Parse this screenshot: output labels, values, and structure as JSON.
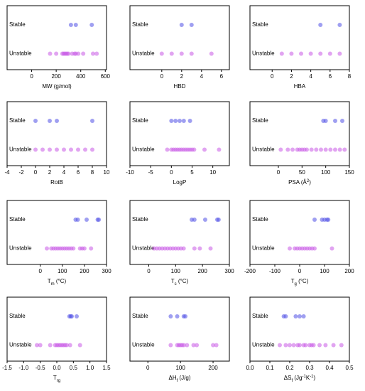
{
  "chart_data": [
    {
      "type": "scatter",
      "xlabel": [
        {
          "text": "MW (g/mol)"
        }
      ],
      "xlim": [
        -200,
        610
      ],
      "xticks": [
        0,
        200,
        400,
        600
      ],
      "series": [
        {
          "name": "Stable",
          "color": "#5050e6",
          "values": [
            320,
            360,
            490
          ]
        },
        {
          "name": "Unstable",
          "color": "#c85ae6",
          "values": [
            150,
            200,
            250,
            260,
            270,
            280,
            290,
            300,
            330,
            350,
            360,
            380,
            420,
            500,
            530
          ]
        }
      ]
    },
    {
      "type": "scatter",
      "xlabel": [
        {
          "text": "HBD"
        }
      ],
      "xlim": [
        -3.2,
        6.8
      ],
      "xticks": [
        0,
        2,
        4,
        6
      ],
      "series": [
        {
          "name": "Stable",
          "color": "#5050e6",
          "values": [
            2,
            3
          ]
        },
        {
          "name": "Unstable",
          "color": "#c85ae6",
          "values": [
            0,
            1,
            2,
            3,
            5
          ]
        }
      ]
    },
    {
      "type": "scatter",
      "xlabel": [
        {
          "text": "HBA"
        }
      ],
      "xlim": [
        -2.3,
        8
      ],
      "xticks": [
        0,
        2,
        4,
        6,
        8
      ],
      "series": [
        {
          "name": "Stable",
          "color": "#5050e6",
          "values": [
            5,
            7
          ]
        },
        {
          "name": "Unstable",
          "color": "#c85ae6",
          "values": [
            1,
            2,
            3,
            4,
            5,
            6,
            7
          ]
        }
      ]
    },
    {
      "type": "scatter",
      "xlabel": [
        {
          "text": "RotB"
        }
      ],
      "xlim": [
        -4,
        10
      ],
      "xticks": [
        -4,
        -2,
        0,
        2,
        4,
        6,
        8,
        10
      ],
      "series": [
        {
          "name": "Stable",
          "color": "#5050e6",
          "values": [
            0,
            2,
            3,
            8
          ]
        },
        {
          "name": "Unstable",
          "color": "#c85ae6",
          "values": [
            0,
            1,
            2,
            3,
            4,
            5,
            6,
            7,
            8
          ]
        }
      ]
    },
    {
      "type": "scatter",
      "xlabel": [
        {
          "text": "LogP"
        }
      ],
      "xlim": [
        -10,
        14
      ],
      "xticks": [
        -10,
        -5,
        0,
        5,
        10
      ],
      "series": [
        {
          "name": "Stable",
          "color": "#5050e6",
          "values": [
            0,
            1,
            2,
            3,
            4.5
          ]
        },
        {
          "name": "Unstable",
          "color": "#c85ae6",
          "values": [
            -1,
            0,
            0.5,
            1,
            1.5,
            2,
            2.5,
            3,
            3.5,
            4,
            4.5,
            5,
            5.5,
            8,
            11.5
          ]
        }
      ]
    },
    {
      "type": "scatter",
      "xlabel": [
        {
          "text": "PSA (Å"
        },
        {
          "text": "2",
          "sup": true
        },
        {
          "text": ")"
        }
      ],
      "xlim": [
        -60,
        150
      ],
      "xticks": [
        0,
        50,
        100,
        150
      ],
      "series": [
        {
          "name": "Stable",
          "color": "#5050e6",
          "values": [
            95,
            100,
            120,
            135
          ]
        },
        {
          "name": "Unstable",
          "color": "#c85ae6",
          "values": [
            5,
            20,
            30,
            40,
            45,
            50,
            55,
            60,
            70,
            80,
            90,
            100,
            110,
            120,
            130,
            140
          ]
        }
      ]
    },
    {
      "type": "scatter",
      "xlabel": [
        {
          "text": "T"
        },
        {
          "text": "m",
          "sub": true
        },
        {
          "text": " (°C)"
        }
      ],
      "xlim": [
        -150,
        300
      ],
      "xticks": [
        0,
        100,
        200,
        300
      ],
      "series": [
        {
          "name": "Stable",
          "color": "#5050e6",
          "values": [
            160,
            170,
            210,
            260,
            265
          ]
        },
        {
          "name": "Unstable",
          "color": "#c85ae6",
          "values": [
            30,
            50,
            60,
            70,
            80,
            90,
            100,
            110,
            120,
            130,
            140,
            150,
            180,
            190,
            200,
            230
          ]
        }
      ]
    },
    {
      "type": "scatter",
      "xlabel": [
        {
          "text": "T"
        },
        {
          "text": "c",
          "sub": true
        },
        {
          "text": " (°C)"
        }
      ],
      "xlim": [
        -70,
        300
      ],
      "xticks": [
        0,
        100,
        200,
        300
      ],
      "series": [
        {
          "name": "Stable",
          "color": "#5050e6",
          "values": [
            160,
            170,
            210,
            255,
            260
          ]
        },
        {
          "name": "Unstable",
          "color": "#c85ae6",
          "values": [
            20,
            30,
            40,
            50,
            60,
            70,
            80,
            90,
            100,
            110,
            120,
            130,
            170,
            190,
            230
          ]
        }
      ]
    },
    {
      "type": "scatter",
      "xlabel": [
        {
          "text": "T"
        },
        {
          "text": "g",
          "sub": true
        },
        {
          "text": " (°C)"
        }
      ],
      "xlim": [
        -200,
        200
      ],
      "xticks": [
        -200,
        -100,
        0,
        100,
        200
      ],
      "series": [
        {
          "name": "Stable",
          "color": "#5050e6",
          "values": [
            60,
            90,
            100,
            110,
            115
          ]
        },
        {
          "name": "Unstable",
          "color": "#c85ae6",
          "values": [
            -40,
            -20,
            -10,
            0,
            10,
            20,
            30,
            40,
            50,
            60,
            130
          ]
        }
      ]
    },
    {
      "type": "scatter",
      "xlabel": [
        {
          "text": "T"
        },
        {
          "text": "rg",
          "sub": true
        }
      ],
      "xlim": [
        -1.5,
        1.5
      ],
      "xticks": [
        -1.5,
        {
          "value": -1,
          "label": "-1.0"
        },
        -0.5,
        {
          "value": 0,
          "label": "0.0"
        },
        0.5,
        {
          "value": 1,
          "label": "1.0"
        },
        1.5
      ],
      "series": [
        {
          "name": "Stable",
          "color": "#5050e6",
          "values": [
            0.38,
            0.42,
            0.45,
            0.6
          ]
        },
        {
          "name": "Unstable",
          "color": "#c85ae6",
          "values": [
            -0.6,
            -0.5,
            -0.2,
            -0.05,
            0,
            0.05,
            0.1,
            0.15,
            0.2,
            0.25,
            0.3,
            0.4,
            0.7
          ]
        }
      ]
    },
    {
      "type": "scatter",
      "xlabel": [
        {
          "text": "ΔH"
        },
        {
          "text": "f",
          "sub": true
        },
        {
          "text": " (J/g)"
        }
      ],
      "xlim": [
        -55,
        250
      ],
      "xticks": [
        0,
        100,
        200
      ],
      "series": [
        {
          "name": "Stable",
          "color": "#5050e6",
          "values": [
            70,
            90,
            110,
            115
          ]
        },
        {
          "name": "Unstable",
          "color": "#c85ae6",
          "values": [
            70,
            90,
            95,
            100,
            105,
            110,
            120,
            140,
            150,
            200,
            210
          ]
        }
      ]
    },
    {
      "type": "scatter",
      "xlabel": [
        {
          "text": "ΔS"
        },
        {
          "text": "f",
          "sub": true
        },
        {
          "text": " (Jg"
        },
        {
          "text": "-1",
          "sup": true
        },
        {
          "text": "K"
        },
        {
          "text": "-1",
          "sup": true
        },
        {
          "text": ")"
        }
      ],
      "xlim": [
        0,
        0.5
      ],
      "xticks": [
        {
          "value": 0,
          "label": "0.0"
        },
        0.1,
        0.2,
        0.3,
        0.4,
        0.5
      ],
      "series": [
        {
          "name": "Stable",
          "color": "#5050e6",
          "values": [
            0.17,
            0.18,
            0.23,
            0.25,
            0.27
          ]
        },
        {
          "name": "Unstable",
          "color": "#c85ae6",
          "values": [
            0.15,
            0.18,
            0.2,
            0.22,
            0.24,
            0.25,
            0.27,
            0.28,
            0.3,
            0.31,
            0.32,
            0.35,
            0.38,
            0.42,
            0.46
          ]
        }
      ]
    }
  ]
}
